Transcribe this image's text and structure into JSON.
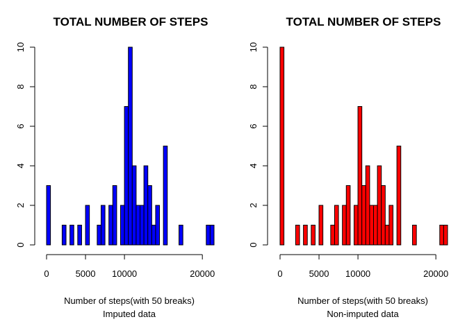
{
  "chart_data": [
    {
      "type": "bar",
      "title": "TOTAL NUMBER OF STEPS",
      "xlabel": "Number of steps(with 50 breaks)",
      "subtitle": "Imputed data",
      "color": "#0000ff",
      "bin_width": 500,
      "bin_starts": [
        0,
        2000,
        2500,
        3000,
        3500,
        4000,
        4500,
        5000,
        6500,
        7000,
        7500,
        8000,
        8500,
        9500,
        10000,
        10500,
        11000,
        11500,
        12000,
        12500,
        13000,
        13500,
        14000,
        14500,
        15000,
        17000,
        20500,
        21000
      ],
      "values": [
        3,
        1,
        0,
        1,
        0,
        1,
        0,
        2,
        1,
        2,
        0,
        2,
        3,
        2,
        7,
        10,
        4,
        2,
        2,
        4,
        3,
        1,
        2,
        0,
        5,
        1,
        1,
        1
      ],
      "xlim": [
        0,
        21500
      ],
      "ylim": [
        0,
        10
      ],
      "xticks": [
        0,
        5000,
        10000,
        20000
      ],
      "xtick_labels": [
        "0",
        "5000",
        "10000",
        "20000"
      ],
      "yticks": [
        0,
        2,
        4,
        6,
        8,
        10
      ],
      "ytick_labels": [
        "0",
        "2",
        "4",
        "6",
        "8",
        "10"
      ]
    },
    {
      "type": "bar",
      "title": "TOTAL NUMBER OF STEPS",
      "xlabel": "Number of steps(with 50 breaks)",
      "subtitle": "Non-imputed data",
      "color": "#ff0000",
      "bin_width": 500,
      "bin_starts": [
        0,
        2000,
        2500,
        3000,
        3500,
        4000,
        4500,
        5000,
        6500,
        7000,
        7500,
        8000,
        8500,
        9500,
        10000,
        10500,
        11000,
        11500,
        12000,
        12500,
        13000,
        13500,
        14000,
        14500,
        15000,
        17000,
        20500,
        21000
      ],
      "values": [
        10,
        1,
        0,
        1,
        0,
        1,
        0,
        2,
        1,
        2,
        0,
        2,
        3,
        2,
        7,
        3,
        4,
        2,
        2,
        4,
        3,
        1,
        2,
        0,
        5,
        1,
        1,
        1
      ],
      "xlim": [
        0,
        21500
      ],
      "ylim": [
        0,
        10
      ],
      "xticks": [
        0,
        5000,
        10000,
        20000
      ],
      "xtick_labels": [
        "0",
        "5000",
        "10000",
        "20000"
      ],
      "yticks": [
        0,
        2,
        4,
        6,
        8,
        10
      ],
      "ytick_labels": [
        "0",
        "2",
        "4",
        "6",
        "8",
        "10"
      ]
    }
  ]
}
